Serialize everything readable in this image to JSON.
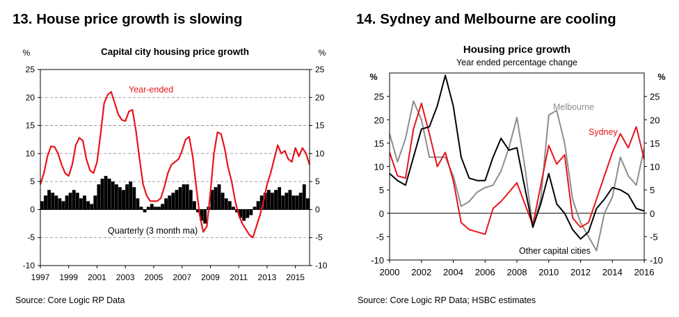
{
  "figure13": {
    "heading": "13. House price growth is slowing",
    "source": "Source: Core Logic RP Data",
    "chart_data": {
      "type": "line",
      "title": "Capital city housing price growth",
      "ylabel_left": "%",
      "ylabel_right": "%",
      "ylim": [
        -10,
        25
      ],
      "yticks": [
        25,
        20,
        15,
        10,
        5,
        0,
        -5,
        -10
      ],
      "xlim": [
        1997,
        2016
      ],
      "xticks": [
        1997,
        1999,
        2001,
        2003,
        2005,
        2007,
        2009,
        2011,
        2013,
        2015
      ],
      "grid": "horizontal dashed",
      "series": [
        {
          "name": "Year-ended",
          "type": "line",
          "color": "#e8141a",
          "x": [
            1997.0,
            1997.25,
            1997.5,
            1997.75,
            1998.0,
            1998.25,
            1998.5,
            1998.75,
            1999.0,
            1999.25,
            1999.5,
            1999.75,
            2000.0,
            2000.25,
            2000.5,
            2000.75,
            2001.0,
            2001.25,
            2001.5,
            2001.75,
            2002.0,
            2002.25,
            2002.5,
            2002.75,
            2003.0,
            2003.25,
            2003.5,
            2003.75,
            2004.0,
            2004.25,
            2004.5,
            2004.75,
            2005.0,
            2005.25,
            2005.5,
            2005.75,
            2006.0,
            2006.25,
            2006.5,
            2006.75,
            2007.0,
            2007.25,
            2007.5,
            2007.75,
            2008.0,
            2008.25,
            2008.5,
            2008.75,
            2009.0,
            2009.25,
            2009.5,
            2009.75,
            2010.0,
            2010.25,
            2010.5,
            2010.75,
            2011.0,
            2011.25,
            2011.5,
            2011.75,
            2012.0,
            2012.25,
            2012.5,
            2012.75,
            2013.0,
            2013.25,
            2013.5,
            2013.75,
            2014.0,
            2014.25,
            2014.5,
            2014.75,
            2015.0,
            2015.25,
            2015.5,
            2015.75,
            2016.0
          ],
          "values": [
            4.5,
            6.5,
            9.5,
            11.3,
            11.2,
            10.0,
            8.0,
            6.5,
            6.0,
            8.0,
            11.5,
            12.8,
            12.3,
            9.0,
            7.0,
            6.5,
            8.5,
            13.5,
            19.0,
            20.5,
            21.0,
            19.0,
            17.0,
            16.0,
            15.8,
            17.5,
            17.8,
            14.0,
            9.0,
            4.5,
            2.5,
            1.5,
            1.5,
            1.5,
            2.0,
            4.0,
            6.5,
            8.0,
            8.5,
            9.0,
            10.5,
            12.5,
            13.0,
            9.5,
            4.0,
            -1.0,
            -4.0,
            -3.0,
            3.0,
            10.0,
            13.8,
            13.5,
            11.0,
            7.5,
            5.0,
            1.5,
            -1.0,
            -2.5,
            -3.5,
            -4.5,
            -5.0,
            -3.0,
            -1.0,
            1.5,
            4.5,
            6.5,
            9.0,
            11.5,
            10.0,
            10.5,
            9.0,
            8.5,
            11.0,
            9.5,
            11.0,
            10.0,
            8.0
          ]
        },
        {
          "name": "Quarterly (3 month ma)",
          "type": "bar",
          "color": "#000000",
          "x": [
            1997.0,
            1997.25,
            1997.5,
            1997.75,
            1998.0,
            1998.25,
            1998.5,
            1998.75,
            1999.0,
            1999.25,
            1999.5,
            1999.75,
            2000.0,
            2000.25,
            2000.5,
            2000.75,
            2001.0,
            2001.25,
            2001.5,
            2001.75,
            2002.0,
            2002.25,
            2002.5,
            2002.75,
            2003.0,
            2003.25,
            2003.5,
            2003.75,
            2004.0,
            2004.25,
            2004.5,
            2004.75,
            2005.0,
            2005.25,
            2005.5,
            2005.75,
            2006.0,
            2006.25,
            2006.5,
            2006.75,
            2007.0,
            2007.25,
            2007.5,
            2007.75,
            2008.0,
            2008.25,
            2008.5,
            2008.75,
            2009.0,
            2009.25,
            2009.5,
            2009.75,
            2010.0,
            2010.25,
            2010.5,
            2010.75,
            2011.0,
            2011.25,
            2011.5,
            2011.75,
            2012.0,
            2012.25,
            2012.5,
            2012.75,
            2013.0,
            2013.25,
            2013.5,
            2013.75,
            2014.0,
            2014.25,
            2014.5,
            2014.75,
            2015.0,
            2015.25,
            2015.5,
            2015.75
          ],
          "values": [
            1.5,
            2.5,
            3.5,
            3.0,
            2.5,
            2.0,
            1.5,
            2.5,
            3.0,
            3.5,
            3.0,
            2.0,
            2.5,
            1.5,
            1.0,
            2.5,
            4.5,
            5.5,
            6.0,
            5.5,
            5.0,
            4.5,
            4.0,
            3.5,
            4.5,
            5.0,
            4.0,
            2.0,
            0.5,
            -0.5,
            0.5,
            1.0,
            0.5,
            0.5,
            1.0,
            2.0,
            2.5,
            3.0,
            3.5,
            4.0,
            4.5,
            4.5,
            3.5,
            1.5,
            -0.5,
            -2.0,
            -2.5,
            0.5,
            3.5,
            4.0,
            4.5,
            3.0,
            2.0,
            1.5,
            0.5,
            -0.5,
            -1.5,
            -2.0,
            -1.5,
            -1.0,
            0.5,
            1.5,
            2.5,
            3.0,
            3.5,
            3.0,
            3.5,
            4.0,
            2.5,
            3.0,
            3.5,
            2.5,
            2.5,
            3.0,
            4.5,
            2.0
          ]
        }
      ],
      "annotations": [
        "Year-ended",
        "Quarterly (3 month ma)"
      ]
    }
  },
  "figure14": {
    "heading": "14. Sydney and Melbourne are cooling",
    "source": "Source: Core Logic RP Data; HSBC estimates",
    "chart_data": {
      "type": "line",
      "title": "Housing price growth",
      "subtitle": "Year ended percentage change",
      "ylabel_left": "%",
      "ylabel_right": "%",
      "ylim": [
        -10,
        30
      ],
      "yticks": [
        25,
        20,
        15,
        10,
        5,
        0,
        -5,
        -10
      ],
      "xlim": [
        2000,
        2016
      ],
      "xticks": [
        2000,
        2002,
        2004,
        2006,
        2008,
        2010,
        2012,
        2014,
        2016
      ],
      "grid": "none",
      "series": [
        {
          "name": "Melbourne",
          "color": "#8c8c8c",
          "x": [
            2000.0,
            2000.5,
            2001.0,
            2001.5,
            2002.0,
            2002.5,
            2003.0,
            2003.5,
            2004.0,
            2004.5,
            2005.0,
            2005.5,
            2006.0,
            2006.5,
            2007.0,
            2007.5,
            2008.0,
            2008.5,
            2009.0,
            2009.5,
            2010.0,
            2010.5,
            2011.0,
            2011.5,
            2012.0,
            2012.5,
            2013.0,
            2013.5,
            2014.0,
            2014.5,
            2015.0,
            2015.5,
            2016.0
          ],
          "values": [
            17.0,
            11.0,
            16.0,
            24.0,
            20.0,
            12.0,
            12.0,
            12.0,
            8.0,
            1.5,
            2.5,
            4.5,
            5.5,
            6.0,
            9.0,
            14.0,
            20.5,
            10.0,
            -3.0,
            3.0,
            21.0,
            22.0,
            15.0,
            3.0,
            -2.0,
            -5.0,
            -8.0,
            0.0,
            3.5,
            12.0,
            8.0,
            6.0,
            14.0
          ]
        },
        {
          "name": "Sydney",
          "color": "#e8141a",
          "x": [
            2000.0,
            2000.5,
            2001.0,
            2001.5,
            2002.0,
            2002.5,
            2003.0,
            2003.5,
            2004.0,
            2004.5,
            2005.0,
            2005.5,
            2006.0,
            2006.5,
            2007.0,
            2007.5,
            2008.0,
            2008.5,
            2009.0,
            2009.5,
            2010.0,
            2010.5,
            2011.0,
            2011.5,
            2012.0,
            2012.5,
            2013.0,
            2013.5,
            2014.0,
            2014.5,
            2015.0,
            2015.5,
            2016.0
          ],
          "values": [
            13.0,
            8.0,
            7.5,
            18.0,
            23.5,
            17.0,
            10.0,
            13.0,
            7.0,
            -2.0,
            -3.5,
            -4.0,
            -4.5,
            1.0,
            2.5,
            4.5,
            6.5,
            2.0,
            -2.5,
            6.0,
            14.5,
            10.5,
            12.5,
            -1.0,
            -3.0,
            -2.0,
            3.0,
            8.0,
            13.0,
            17.0,
            14.0,
            18.5,
            11.5
          ]
        },
        {
          "name": "Other capital cities",
          "color": "#000000",
          "x": [
            2000.0,
            2000.5,
            2001.0,
            2001.5,
            2002.0,
            2002.5,
            2003.0,
            2003.5,
            2004.0,
            2004.5,
            2005.0,
            2005.5,
            2006.0,
            2006.5,
            2007.0,
            2007.5,
            2008.0,
            2008.5,
            2009.0,
            2009.5,
            2010.0,
            2010.5,
            2011.0,
            2011.5,
            2012.0,
            2012.5,
            2013.0,
            2013.5,
            2014.0,
            2014.5,
            2015.0,
            2015.5,
            2016.0
          ],
          "values": [
            8.5,
            7.0,
            6.0,
            12.0,
            18.0,
            18.5,
            23.0,
            29.5,
            23.0,
            12.0,
            7.5,
            7.0,
            7.0,
            12.0,
            16.0,
            13.5,
            14.0,
            5.5,
            -3.0,
            2.0,
            8.5,
            2.0,
            0.0,
            -3.5,
            -5.5,
            -4.0,
            1.0,
            3.0,
            5.5,
            5.0,
            4.0,
            1.0,
            0.5
          ]
        }
      ],
      "annotations": [
        "Melbourne",
        "Sydney",
        "Other capital cities"
      ]
    }
  }
}
